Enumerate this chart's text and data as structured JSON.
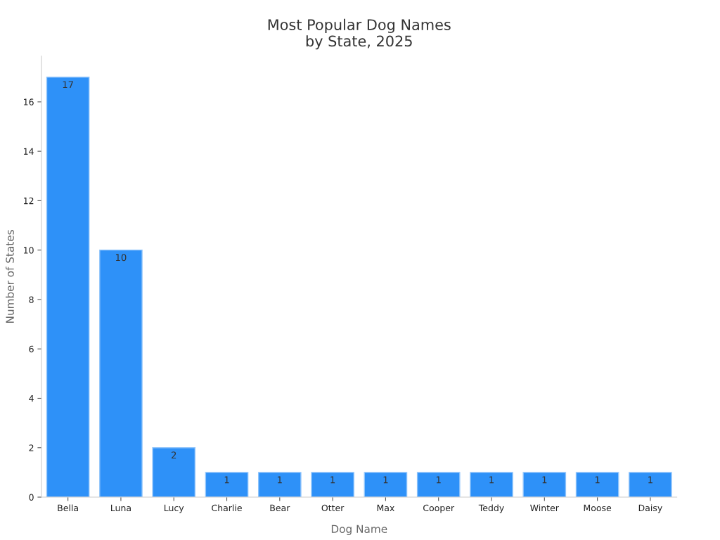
{
  "chart_data": {
    "type": "bar",
    "title": "Most Popular Dog Names\nby State, 2025",
    "xlabel": "Dog Name",
    "ylabel": "Number of States",
    "categories": [
      "Bella",
      "Luna",
      "Lucy",
      "Charlie",
      "Bear",
      "Otter",
      "Max",
      "Cooper",
      "Teddy",
      "Winter",
      "Moose",
      "Daisy"
    ],
    "values": [
      17,
      10,
      2,
      1,
      1,
      1,
      1,
      1,
      1,
      1,
      1,
      1
    ],
    "color": "#2e91f8",
    "ylim": [
      0,
      17.85
    ],
    "yticks": [
      0,
      2,
      4,
      6,
      8,
      10,
      12,
      14,
      16
    ],
    "grid": false,
    "data_labels": true
  }
}
